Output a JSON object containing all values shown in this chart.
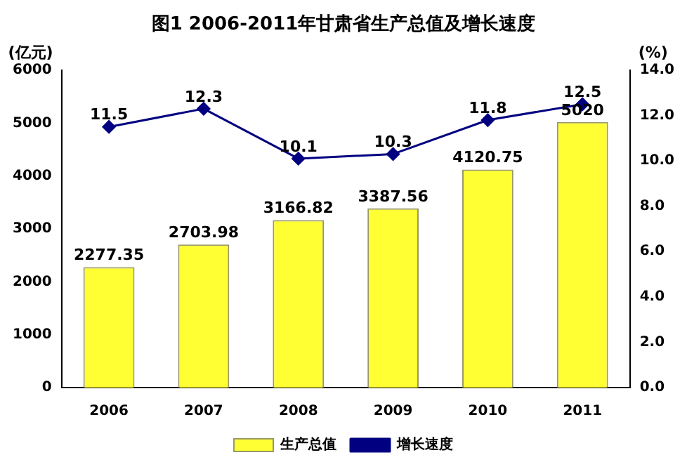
{
  "chart_data": {
    "type": "bar",
    "title": "图1  2006-2011年甘肃省生产总值及增长速度",
    "ylabel": "(亿元)",
    "y2label": "(%)",
    "categories": [
      "2006",
      "2007",
      "2008",
      "2009",
      "2010",
      "2011"
    ],
    "series": [
      {
        "name": "生产总值",
        "color": "#ffff33",
        "values": [
          2277.35,
          2703.98,
          3166.82,
          3387.56,
          4120.75,
          5020
        ]
      },
      {
        "name": "增长速度",
        "type": "line",
        "color": "#000080",
        "axis": "y2",
        "values": [
          11.5,
          12.3,
          10.1,
          10.3,
          11.8,
          12.5
        ]
      }
    ],
    "ylim": [
      0,
      6000
    ],
    "yticks": [
      0,
      1000,
      2000,
      3000,
      4000,
      5000,
      6000
    ],
    "y2lim": [
      0,
      14
    ],
    "y2ticks": [
      {
        "value": 0,
        "label": "0.0"
      },
      {
        "value": 2,
        "label": "2.0"
      },
      {
        "value": 4,
        "label": "4.0"
      },
      {
        "value": 6,
        "label": "6.0"
      },
      {
        "value": 8,
        "label": "8.0"
      },
      {
        "value": 10,
        "label": "10.0"
      },
      {
        "value": 12,
        "label": "12.0"
      },
      {
        "value": 14,
        "label": "14.0"
      }
    ],
    "grid": false,
    "legend": "bottom",
    "marker": "diamond",
    "line_style": "solid",
    "data_labels": true
  }
}
